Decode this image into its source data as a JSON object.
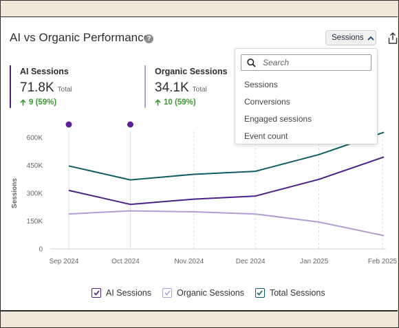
{
  "widget": {
    "title": "AI vs Organic Performance",
    "help_glyph": "?",
    "metric_button_label": "Sessions"
  },
  "stats": [
    {
      "label": "AI Sessions",
      "value": "71.8K",
      "unit": "Total",
      "change": "9 (59%)",
      "color": "#4b1f86"
    },
    {
      "label": "Organic Sessions",
      "value": "34.1K",
      "unit": "Total",
      "change": "10 (59%)",
      "color": "#b19cd4"
    }
  ],
  "dropdown": {
    "search_placeholder": "Search",
    "options": [
      "Sessions",
      "Conversions",
      "Engaged sessions",
      "Event count"
    ]
  },
  "legend": [
    {
      "label": "AI Sessions",
      "color": "#4b1f86"
    },
    {
      "label": "Organic Sessions",
      "color": "#b19cd4"
    },
    {
      "label": "Total Sessions",
      "color": "#0e5c63"
    }
  ],
  "icons": {
    "help": "help-icon",
    "chevron": "chevron-up-icon",
    "share": "share-icon",
    "search": "search-icon",
    "checkbox": "checkbox-checked-icon",
    "change": "arrow-up-icon"
  },
  "chart_data": {
    "type": "line",
    "xlabel": "",
    "ylabel": "Sessions",
    "x": [
      "Sep 2024",
      "Oct 2024",
      "Nov 2024",
      "Dec 2024",
      "Jan 2025",
      "Feb 2025"
    ],
    "x_days": [
      0,
      30,
      61,
      91,
      122,
      153
    ],
    "yticks": [
      "0",
      "150K",
      "300K",
      "450K",
      "600K"
    ],
    "ylim": [
      0,
      600000
    ],
    "grid": "vertical at annotation markers",
    "annotation_markers_at": [
      "Sep 2024",
      "Oct 2024"
    ],
    "series": [
      {
        "name": "AI Sessions",
        "color": "#4b1f86",
        "values": [
          315000,
          240000,
          268000,
          285000,
          375000,
          495000
        ]
      },
      {
        "name": "Organic Sessions",
        "color": "#b19cd4",
        "values": [
          188000,
          205000,
          200000,
          188000,
          145000,
          72000
        ]
      },
      {
        "name": "Total Sessions",
        "color": "#0e5c63",
        "values": [
          447000,
          372000,
          402000,
          418000,
          508000,
          628000
        ]
      }
    ]
  }
}
